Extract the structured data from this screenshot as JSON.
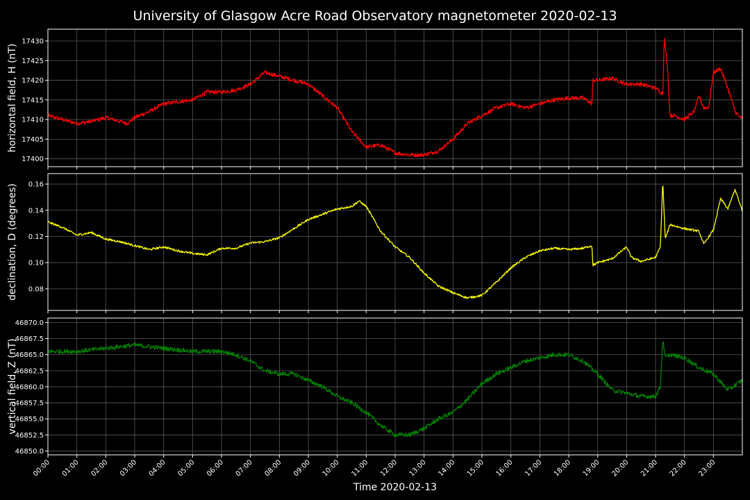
{
  "chart_data": {
    "type": "line",
    "title": "University of Glasgow Acre Road Observatory magnetometer 2020-02-13",
    "xlabel": "Time 2020-02-13",
    "xticks": [
      "00:00",
      "01:00",
      "02:00",
      "03:00",
      "04:00",
      "05:00",
      "06:00",
      "07:00",
      "08:00",
      "09:00",
      "10:00",
      "11:00",
      "12:00",
      "13:00",
      "14:00",
      "15:00",
      "16:00",
      "17:00",
      "18:00",
      "19:00",
      "20:00",
      "21:00",
      "22:00",
      "23:00"
    ],
    "xlim_hours": [
      0,
      24
    ],
    "grid": true,
    "background": "#000000",
    "panels": [
      {
        "ylabel": "horizontal field, H (nT)",
        "color": "#ff0000",
        "ylim": [
          17398,
          17433
        ],
        "yticks": [
          17400,
          17405,
          17410,
          17415,
          17420,
          17425,
          17430
        ],
        "tick_decimals": 0,
        "noise": 0.5,
        "x": [
          "00:00",
          "00:30",
          "01:00",
          "01:30",
          "02:00",
          "02:30",
          "02:45",
          "03:00",
          "03:30",
          "04:00",
          "04:30",
          "05:00",
          "05:30",
          "06:00",
          "06:30",
          "07:00",
          "07:30",
          "08:00",
          "08:30",
          "09:00",
          "09:30",
          "10:00",
          "10:30",
          "11:00",
          "11:30",
          "12:00",
          "12:30",
          "13:00",
          "13:30",
          "14:00",
          "14:30",
          "15:00",
          "15:30",
          "16:00",
          "16:30",
          "17:00",
          "17:30",
          "18:00",
          "18:30",
          "18:48",
          "18:50",
          "19:00",
          "19:30",
          "20:00",
          "20:30",
          "21:00",
          "21:15",
          "21:18",
          "21:25",
          "21:30",
          "21:40",
          "22:00",
          "22:20",
          "22:30",
          "22:40",
          "22:50",
          "23:00",
          "23:15",
          "23:30",
          "23:45",
          "24:00"
        ],
        "y": [
          17411,
          17410,
          17409,
          17409.5,
          17410.5,
          17409.5,
          17409,
          17410.5,
          17412,
          17414,
          17414.5,
          17415,
          17417,
          17417,
          17417.5,
          17419,
          17422,
          17421,
          17420,
          17419,
          17416,
          17413,
          17407,
          17403,
          17403.5,
          17401.5,
          17401,
          17401,
          17402,
          17405,
          17409,
          17411,
          17413,
          17414,
          17413,
          17414,
          17415,
          17415.5,
          17415.5,
          17414,
          17420,
          17420,
          17420.5,
          17419,
          17419,
          17418,
          17416.5,
          17431,
          17423,
          17411,
          17411,
          17410,
          17412,
          17416,
          17413,
          17413,
          17422,
          17423,
          17418,
          17412,
          17410
        ]
      },
      {
        "ylabel": "declination, D (degrees)",
        "color": "#ffff00",
        "ylim": [
          0.0635,
          0.168
        ],
        "yticks": [
          0.08,
          0.1,
          0.12,
          0.14,
          0.16
        ],
        "tick_decimals": 2,
        "noise": 0.0008,
        "x": [
          "00:00",
          "00:30",
          "01:00",
          "01:30",
          "02:00",
          "02:30",
          "03:00",
          "03:30",
          "04:00",
          "04:30",
          "05:00",
          "05:30",
          "06:00",
          "06:30",
          "07:00",
          "07:30",
          "08:00",
          "08:30",
          "09:00",
          "09:30",
          "10:00",
          "10:30",
          "10:45",
          "11:00",
          "11:30",
          "12:00",
          "12:30",
          "13:00",
          "13:30",
          "14:00",
          "14:30",
          "15:00",
          "15:30",
          "16:00",
          "16:30",
          "17:00",
          "17:30",
          "18:00",
          "18:30",
          "18:48",
          "18:50",
          "19:00",
          "19:30",
          "20:00",
          "20:10",
          "20:30",
          "21:00",
          "21:10",
          "21:15",
          "21:20",
          "21:30",
          "22:00",
          "22:30",
          "22:40",
          "23:00",
          "23:15",
          "23:30",
          "23:45",
          "24:00"
        ],
        "y": [
          0.131,
          0.127,
          0.121,
          0.123,
          0.118,
          0.116,
          0.113,
          0.11,
          0.112,
          0.109,
          0.107,
          0.106,
          0.111,
          0.111,
          0.115,
          0.116,
          0.119,
          0.126,
          0.133,
          0.137,
          0.141,
          0.143,
          0.147,
          0.143,
          0.124,
          0.112,
          0.104,
          0.092,
          0.082,
          0.077,
          0.073,
          0.075,
          0.085,
          0.096,
          0.104,
          0.109,
          0.111,
          0.11,
          0.111,
          0.113,
          0.098,
          0.1,
          0.103,
          0.112,
          0.104,
          0.101,
          0.104,
          0.112,
          0.163,
          0.118,
          0.129,
          0.126,
          0.124,
          0.114,
          0.125,
          0.149,
          0.141,
          0.156,
          0.139
        ]
      },
      {
        "ylabel": "vertical field, Z (nT)",
        "color": "#008000",
        "ylim": [
          46849.4,
          46870.7
        ],
        "yticks": [
          46850.0,
          46852.5,
          46855.0,
          46857.5,
          46860.0,
          46862.5,
          46865.0,
          46867.5,
          46870.0
        ],
        "tick_decimals": 1,
        "noise": 0.35,
        "x": [
          "00:00",
          "01:00",
          "02:00",
          "03:00",
          "04:00",
          "05:00",
          "06:00",
          "06:30",
          "07:00",
          "07:30",
          "08:00",
          "08:30",
          "09:00",
          "09:30",
          "10:00",
          "10:30",
          "11:00",
          "11:30",
          "12:00",
          "12:30",
          "13:00",
          "13:30",
          "14:00",
          "14:30",
          "15:00",
          "15:30",
          "16:00",
          "16:30",
          "17:00",
          "17:30",
          "18:00",
          "18:30",
          "19:00",
          "19:30",
          "20:00",
          "20:30",
          "21:00",
          "21:10",
          "21:15",
          "21:20",
          "21:30",
          "22:00",
          "22:30",
          "23:00",
          "23:30",
          "24:00"
        ],
        "y": [
          46865.5,
          46865.5,
          46866,
          46866.5,
          46866,
          46865.5,
          46865.5,
          46865,
          46864,
          46862.5,
          46862,
          46862,
          46861,
          46860,
          46858.5,
          46857.5,
          46856,
          46854,
          46852.5,
          46852.5,
          46853.5,
          46855,
          46856,
          46858,
          46860.5,
          46862,
          46863,
          46864,
          46864.5,
          46865,
          46865,
          46864,
          46862,
          46859.5,
          46859,
          46858.5,
          46858.5,
          46860,
          46867.5,
          46864.5,
          46865,
          46864.5,
          46863,
          46862,
          46859.5,
          46861
        ]
      }
    ]
  }
}
